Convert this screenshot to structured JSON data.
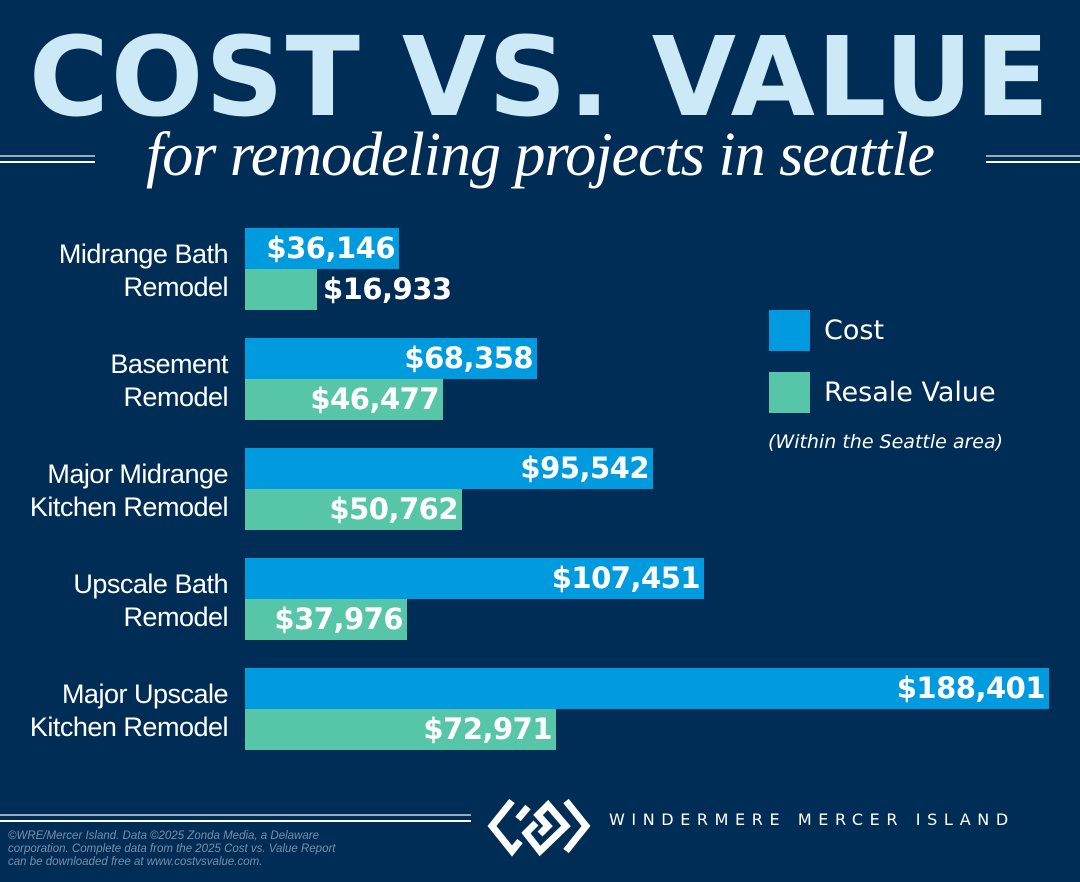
{
  "header": {
    "title": "COST VS. VALUE",
    "subtitle": "for remodeling projects in seattle"
  },
  "legend": {
    "items": [
      {
        "label": "Cost",
        "color": "#009ade"
      },
      {
        "label": "Resale Value",
        "color": "#57c5a8"
      }
    ],
    "note": "(Within the Seattle area)"
  },
  "groups": [
    {
      "line1": "Midrange Bath",
      "line2": "Remodel",
      "cost_label": "$36,146",
      "resale_label": "$16,933"
    },
    {
      "line1": "Basement",
      "line2": "Remodel",
      "cost_label": "$68,358",
      "resale_label": "$46,477"
    },
    {
      "line1": "Major Midrange",
      "line2": "Kitchen Remodel",
      "cost_label": "$95,542",
      "resale_label": "$50,762"
    },
    {
      "line1": "Upscale Bath",
      "line2": "Remodel",
      "cost_label": "$107,451",
      "resale_label": "$37,976"
    },
    {
      "line1": "Major Upscale",
      "line2": "Kitchen Remodel",
      "cost_label": "$188,401",
      "resale_label": "$72,971"
    }
  ],
  "footer": {
    "note": "©WRE/Mercer Island. Data ©2025 Zonda Media, a Delaware corporation. Complete data from the 2025 Cost vs. Value Report can be downloaded free at www.costvsvalue.com.",
    "brand": "WINDERMERE MERCER ISLAND"
  },
  "colors": {
    "background": "#002d55",
    "title": "#cce9f7",
    "cost": "#009ade",
    "resale": "#57c5a8"
  },
  "chart_data": {
    "type": "bar",
    "orientation": "horizontal",
    "title": "COST VS. VALUE",
    "subtitle": "for remodeling projects in seattle",
    "categories": [
      "Midrange Bath Remodel",
      "Basement Remodel",
      "Major Midrange Kitchen Remodel",
      "Upscale Bath Remodel",
      "Major Upscale Kitchen Remodel"
    ],
    "series": [
      {
        "name": "Cost",
        "color": "#009ade",
        "values": [
          36146,
          68358,
          95542,
          107451,
          188401
        ]
      },
      {
        "name": "Resale Value",
        "color": "#57c5a8",
        "values": [
          16933,
          46477,
          50762,
          37976,
          72971
        ]
      }
    ],
    "xlabel": "",
    "ylabel": "",
    "xlim": [
      0,
      188401
    ],
    "grid": false,
    "legend_position": "right",
    "annotations": [
      "(Within the Seattle area)"
    ]
  }
}
